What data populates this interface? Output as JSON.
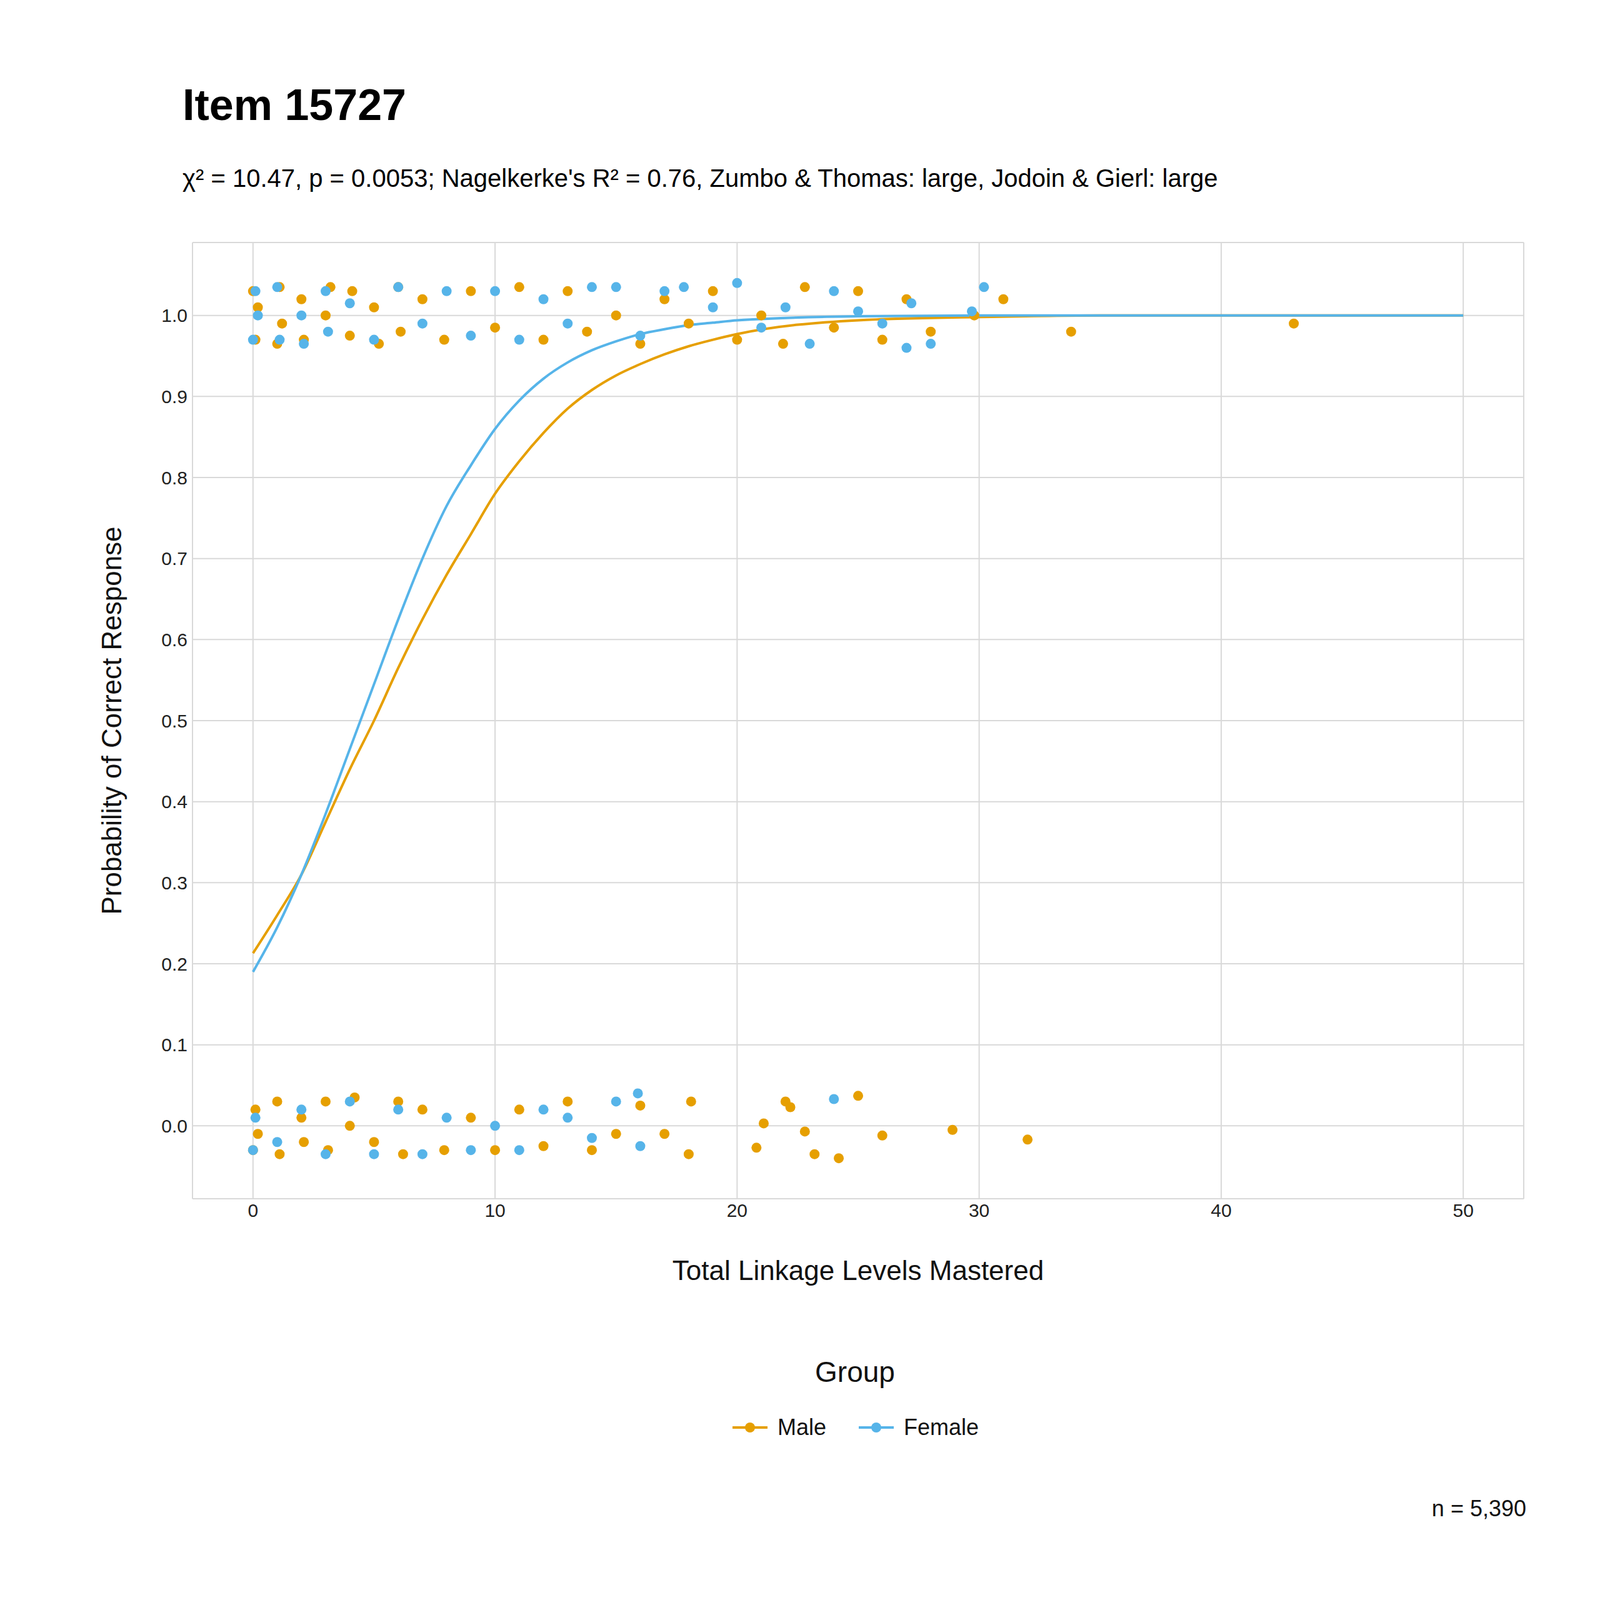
{
  "chart_data": {
    "type": "line",
    "title": "Item 15727",
    "subtitle": "χ² = 10.47, p = 0.0053; Nagelkerke's R² = 0.76, Zumbo & Thomas: large, Jodoin & Gierl: large",
    "x_label": "Total Linkage Levels Mastered",
    "y_label": "Probability of Correct Response",
    "legend_title": "Group",
    "note": "n = 5,390",
    "legend": "bottom",
    "grid": true,
    "xlim": [
      -2.5,
      52.5
    ],
    "xticks": [
      0,
      10,
      20,
      30,
      40,
      50
    ],
    "ylim": [
      -0.09,
      1.09
    ],
    "yticks": [
      {
        "value": 0,
        "label": "0.0"
      },
      0.1,
      0.2,
      0.3,
      0.4,
      0.5,
      0.6,
      0.7,
      0.8,
      0.9,
      {
        "value": 1,
        "label": "1.0"
      }
    ],
    "x": [
      0,
      1,
      2,
      3,
      4,
      5,
      6,
      7,
      8,
      9,
      10,
      11,
      12,
      13,
      14,
      15,
      16,
      17,
      18,
      19,
      20,
      25,
      30,
      35,
      40,
      45,
      50
    ],
    "series": [
      {
        "name": "Male",
        "color": "#E69F00",
        "values": [
          0.213,
          0.26,
          0.31,
          0.375,
          0.44,
          0.5,
          0.565,
          0.625,
          0.68,
          0.73,
          0.78,
          0.82,
          0.855,
          0.885,
          0.908,
          0.926,
          0.94,
          0.952,
          0.962,
          0.97,
          0.977,
          0.994,
          0.998,
          1.0,
          1.0,
          1.0,
          1.0
        ],
        "points": {
          "x": [
            0,
            0.1,
            0.2,
            1,
            1.1,
            1.2,
            2,
            2.1,
            3,
            3.2,
            4,
            4.1,
            5,
            5.2,
            6,
            6.1,
            7,
            7.9,
            9,
            10,
            11,
            12,
            13,
            13.8,
            15,
            16,
            17,
            18,
            19,
            20,
            21,
            21.9,
            22.8,
            24,
            25,
            26,
            27,
            28,
            29.8,
            31,
            33.8,
            43,
            0,
            0.1,
            0.2,
            1,
            1.1,
            2,
            2.1,
            3,
            3.1,
            4,
            4.2,
            5,
            6,
            6.2,
            7,
            7.9,
            9,
            10,
            11,
            12,
            13,
            14,
            15,
            16,
            17,
            18,
            18.1,
            20.8,
            21.1,
            22,
            22.2,
            22.8,
            23.2,
            24.2,
            25,
            26,
            28.9,
            32
          ],
          "y": [
            1.03,
            0.97,
            1.01,
            0.965,
            1.035,
            0.99,
            1.02,
            0.97,
            1.0,
            1.035,
            0.975,
            1.03,
            1.01,
            0.965,
            1.035,
            0.98,
            1.02,
            0.97,
            1.03,
            0.985,
            1.035,
            0.97,
            1.03,
            0.98,
            1.0,
            0.965,
            1.02,
            0.99,
            1.03,
            0.97,
            1.0,
            0.965,
            1.035,
            0.985,
            1.03,
            0.97,
            1.02,
            0.98,
            1.0,
            1.02,
            0.98,
            0.99,
            -0.03,
            0.02,
            -0.01,
            0.03,
            -0.035,
            0.01,
            -0.02,
            0.03,
            -0.03,
            0.0,
            0.035,
            -0.02,
            0.03,
            -0.035,
            0.02,
            -0.03,
            0.01,
            -0.03,
            0.02,
            -0.025,
            0.03,
            -0.03,
            -0.01,
            0.025,
            -0.01,
            -0.035,
            0.03,
            -0.027,
            0.003,
            0.03,
            0.023,
            -0.007,
            -0.035,
            -0.04,
            0.037,
            -0.012,
            -0.005,
            -0.017
          ]
        }
      },
      {
        "name": "Female",
        "color": "#56B4E9",
        "values": [
          0.19,
          0.245,
          0.31,
          0.385,
          0.465,
          0.545,
          0.625,
          0.7,
          0.765,
          0.815,
          0.86,
          0.895,
          0.922,
          0.942,
          0.957,
          0.968,
          0.977,
          0.983,
          0.988,
          0.991,
          0.994,
          0.999,
          1.0,
          1.0,
          1.0,
          1.0,
          1.0
        ],
        "points": {
          "x": [
            0,
            0.1,
            0.2,
            1,
            1.1,
            2,
            2.1,
            3,
            3.1,
            4,
            5,
            6,
            7,
            8,
            9,
            10,
            11,
            12,
            13,
            14,
            15,
            16,
            17,
            17.8,
            19,
            20,
            21,
            22,
            23,
            24,
            25,
            26,
            27,
            27.2,
            28,
            29.7,
            30.2,
            0,
            0.1,
            1,
            2,
            3,
            4,
            5,
            6,
            7,
            8,
            9,
            10,
            11,
            12,
            13,
            14,
            15,
            15.9,
            16,
            24
          ],
          "y": [
            0.97,
            1.03,
            1.0,
            1.035,
            0.97,
            1.0,
            0.965,
            1.03,
            0.98,
            1.015,
            0.97,
            1.035,
            0.99,
            1.03,
            0.975,
            1.03,
            0.97,
            1.02,
            0.99,
            1.035,
            1.035,
            0.975,
            1.03,
            1.035,
            1.01,
            1.04,
            0.985,
            1.01,
            0.965,
            1.03,
            1.005,
            0.99,
            0.96,
            1.015,
            0.965,
            1.005,
            1.035,
            -0.03,
            0.01,
            -0.02,
            0.02,
            -0.035,
            0.03,
            -0.035,
            0.02,
            -0.035,
            0.01,
            -0.03,
            0.0,
            -0.03,
            0.02,
            0.01,
            -0.015,
            0.03,
            0.04,
            -0.025,
            0.033
          ]
        }
      }
    ]
  }
}
